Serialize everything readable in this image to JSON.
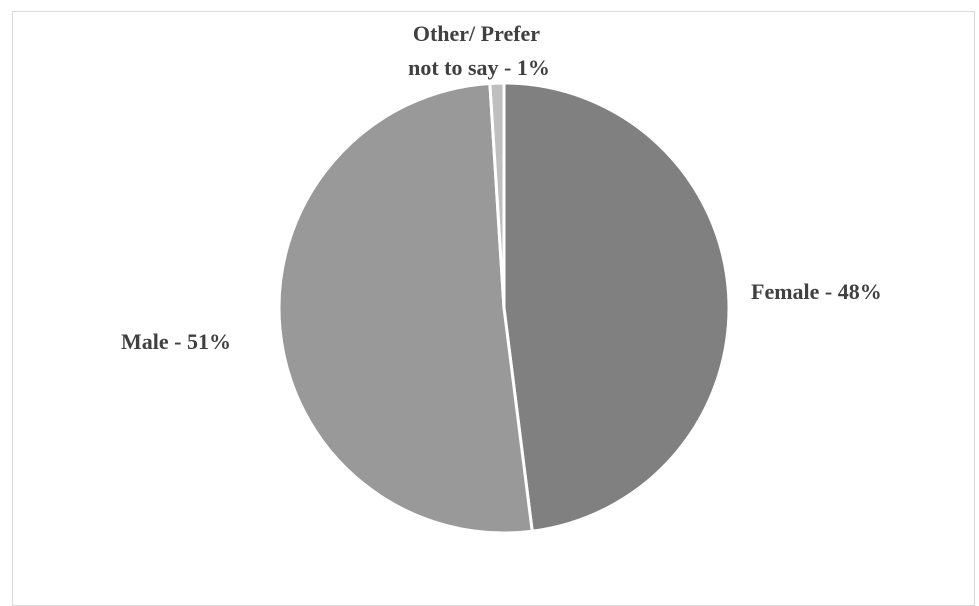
{
  "chart_data": {
    "type": "pie",
    "title": "",
    "slices": [
      {
        "name": "Female",
        "value": 48,
        "label": "Female - 48%",
        "color": "#808080"
      },
      {
        "name": "Male",
        "value": 51,
        "label": "Male - 51%",
        "color": "#999999"
      },
      {
        "name": "Other/ Prefer not to say",
        "value": 1,
        "label_lines": [
          "Other/ Prefer",
          "not to say - 1%"
        ],
        "color": "#bfbfbf"
      }
    ],
    "start_angle_deg": 0,
    "direction": "clockwise",
    "legend": "none",
    "slice_border_color": "#ffffff"
  }
}
